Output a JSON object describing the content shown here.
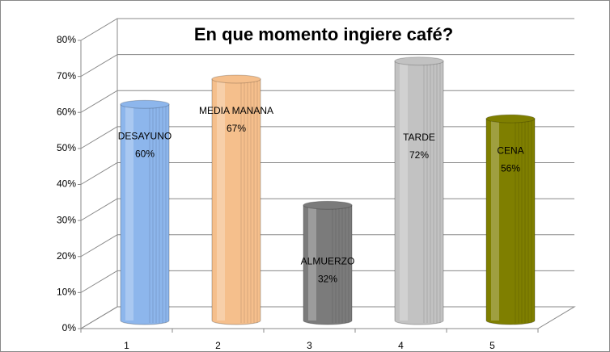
{
  "chart_data": {
    "type": "bar",
    "title": "En que momento ingiere café?",
    "categories": [
      "1",
      "2",
      "3",
      "4",
      "5"
    ],
    "point_names": [
      "DESAYUNO",
      "MEDIA MANANA",
      "ALMUERZO",
      "TARDE",
      "CENA"
    ],
    "values": [
      60,
      67,
      32,
      72,
      56
    ],
    "value_labels": [
      "60%",
      "67%",
      "32%",
      "72%",
      "56%"
    ],
    "colors": [
      "#8db6ec",
      "#f5bf8c",
      "#7b7b7b",
      "#c2c2c2",
      "#7f7f00"
    ],
    "ylim": [
      0,
      80
    ],
    "yticks": [
      {
        "value": 0,
        "label": "0%"
      },
      {
        "value": 10,
        "label": "10%"
      },
      {
        "value": 20,
        "label": "20%"
      },
      {
        "value": 30,
        "label": "30%"
      },
      {
        "value": 40,
        "label": "40%"
      },
      {
        "value": 50,
        "label": "50%"
      },
      {
        "value": 60,
        "label": "60%"
      },
      {
        "value": 70,
        "label": "70%"
      },
      {
        "value": 80,
        "label": "80%"
      }
    ],
    "grid": true
  }
}
